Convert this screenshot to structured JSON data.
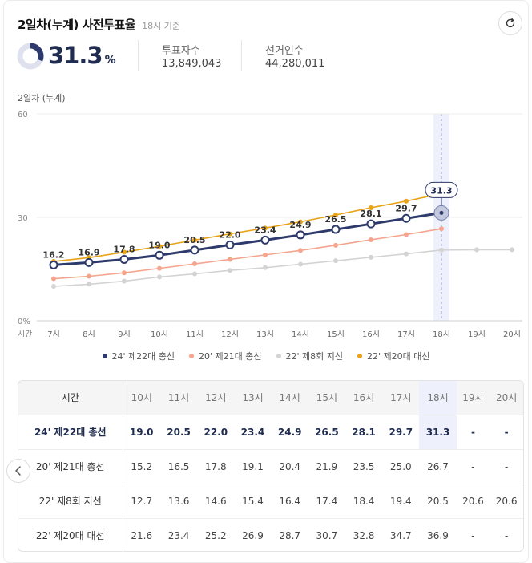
{
  "header": {
    "title": "2일차(누계) 사전투표율",
    "subtitle": "18시 기준"
  },
  "summary": {
    "rate_value": "31.3",
    "rate_unit": "%",
    "rate_fraction": 0.313,
    "turnout_label": "투표자수",
    "turnout_value": "13,849,043",
    "voters_label": "선거인수",
    "voters_value": "44,280,011"
  },
  "colors": {
    "series_22_assembly": "#2d3a6b",
    "series_21_assembly": "#f5a58e",
    "series_8_local": "#d3d3d3",
    "series_20_presidential": "#e8a317",
    "highlight_band": "#eef0fb"
  },
  "chart_data": {
    "type": "line",
    "title": "2일차 (누계)",
    "xlabel": "시간",
    "ylabel": "",
    "ylim": [
      0,
      60
    ],
    "yticks": [
      "0%",
      "30",
      "60"
    ],
    "categories": [
      "7시",
      "8시",
      "9시",
      "10시",
      "11시",
      "12시",
      "13시",
      "14시",
      "15시",
      "16시",
      "17시",
      "18시",
      "19시",
      "20시"
    ],
    "current_index": 11,
    "current_label": "31.3",
    "series": [
      {
        "name": "24' 제22대 총선",
        "color": "#2d3a6b",
        "values": [
          16.2,
          16.9,
          17.8,
          19.0,
          20.5,
          22.0,
          23.4,
          24.9,
          26.5,
          28.1,
          29.7,
          31.3,
          null,
          null
        ],
        "labeled": true
      },
      {
        "name": "20' 제21대 총선",
        "color": "#f5a58e",
        "values": [
          12.2,
          12.9,
          13.9,
          15.2,
          16.5,
          17.8,
          19.1,
          20.4,
          21.9,
          23.5,
          25.0,
          26.7,
          null,
          null
        ],
        "labeled": false
      },
      {
        "name": "22' 제8회 지선",
        "color": "#d3d3d3",
        "values": [
          10.0,
          10.6,
          11.5,
          12.7,
          13.6,
          14.6,
          15.4,
          16.4,
          17.4,
          18.4,
          19.4,
          20.5,
          20.6,
          20.6
        ],
        "labeled": false
      },
      {
        "name": "22' 제20대 대선",
        "color": "#e8a317",
        "values": [
          17.2,
          18.3,
          19.9,
          21.6,
          23.4,
          25.2,
          26.9,
          28.7,
          30.7,
          32.8,
          34.7,
          36.9,
          null,
          null
        ],
        "labeled": false
      }
    ]
  },
  "table": {
    "header_label": "시간",
    "columns": [
      "10시",
      "11시",
      "12시",
      "13시",
      "14시",
      "15시",
      "16시",
      "17시",
      "18시",
      "19시",
      "20시"
    ],
    "rows": [
      {
        "label": "24' 제22대 총선",
        "values": [
          "19.0",
          "20.5",
          "22.0",
          "23.4",
          "24.9",
          "26.5",
          "28.1",
          "29.7",
          "31.3",
          "-",
          "-"
        ]
      },
      {
        "label": "20' 제21대 총선",
        "values": [
          "15.2",
          "16.5",
          "17.8",
          "19.1",
          "20.4",
          "21.9",
          "23.5",
          "25.0",
          "26.7",
          "-",
          "-"
        ]
      },
      {
        "label": "22' 제8회 지선",
        "values": [
          "12.7",
          "13.6",
          "14.6",
          "15.4",
          "16.4",
          "17.4",
          "18.4",
          "19.4",
          "20.5",
          "20.6",
          "20.6"
        ]
      },
      {
        "label": "22' 제20대 대선",
        "values": [
          "21.6",
          "23.4",
          "25.2",
          "26.9",
          "28.7",
          "30.7",
          "32.8",
          "34.7",
          "36.9",
          "-",
          "-"
        ]
      }
    ]
  }
}
